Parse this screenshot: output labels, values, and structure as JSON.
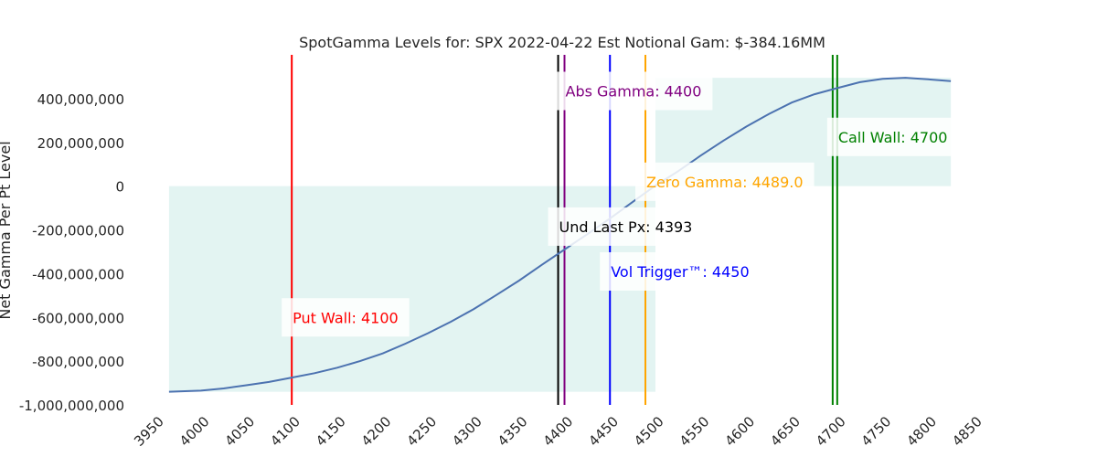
{
  "chart_data": {
    "type": "line",
    "title": "SpotGamma Levels for: SPX  2022-04-22 Est Notional Gam: $-384.16MM",
    "xlabel": "",
    "ylabel": "Net Gamma Per Pt Level",
    "xlim": [
      3950,
      4850
    ],
    "ylim": [
      -1000000000,
      600000000
    ],
    "x_ticks": [
      3950,
      4000,
      4050,
      4100,
      4150,
      4200,
      4250,
      4300,
      4350,
      4400,
      4450,
      4500,
      4550,
      4600,
      4650,
      4700,
      4750,
      4800,
      4850
    ],
    "y_ticks": [
      -1000000000,
      -800000000,
      -600000000,
      -400000000,
      -200000000,
      0,
      200000000,
      400000000
    ],
    "y_tick_labels": [
      "-1,000,000,000",
      "-800,000,000",
      "-600,000,000",
      "-400,000,000",
      "-200,000,000",
      "0",
      "200,000,000",
      "400,000,000"
    ],
    "grid": false,
    "series": [
      {
        "color": "#4c72b0",
        "x": [
          3965,
          4000,
          4025,
          4050,
          4075,
          4100,
          4125,
          4150,
          4175,
          4200,
          4225,
          4250,
          4275,
          4300,
          4325,
          4350,
          4375,
          4400,
          4425,
          4450,
          4475,
          4500,
          4525,
          4550,
          4575,
          4600,
          4625,
          4650,
          4675,
          4700,
          4725,
          4750,
          4775,
          4800,
          4825
        ],
        "y": [
          -940000000,
          -935000000,
          -925000000,
          -910000000,
          -895000000,
          -875000000,
          -855000000,
          -830000000,
          -800000000,
          -765000000,
          -720000000,
          -672000000,
          -620000000,
          -562000000,
          -498000000,
          -432000000,
          -360000000,
          -290000000,
          -220000000,
          -148000000,
          -72000000,
          2000000,
          68000000,
          140000000,
          208000000,
          272000000,
          330000000,
          382000000,
          420000000,
          448000000,
          475000000,
          490000000,
          495000000,
          488000000,
          480000000
        ]
      }
    ],
    "fill_color": "#e3f4f2",
    "levels": [
      {
        "x": 4100,
        "color": "#ff0000",
        "label": "Put Wall: 4100",
        "label_x": 4100,
        "label_y": -600000000
      },
      {
        "x": 4393,
        "color": "#000000",
        "label": "Und Last Px: 4393",
        "label_x": 4393,
        "label_y": -185000000
      },
      {
        "x": 4400,
        "color": "#800080",
        "label": "Abs Gamma: 4400",
        "label_x": 4400,
        "label_y": 435000000
      },
      {
        "x": 4450,
        "color": "#0000ff",
        "label": "Vol Trigger™: 4450",
        "label_x": 4450,
        "label_y": -390000000
      },
      {
        "x": 4489,
        "color": "#ffa500",
        "label": "Zero Gamma: 4489.0",
        "label_x": 4489,
        "label_y": 20000000
      },
      {
        "x": 4695,
        "color": "#008000",
        "label": "",
        "label_x": 4695,
        "label_y": 0
      },
      {
        "x": 4700,
        "color": "#008000",
        "label": "Call Wall: 4700",
        "label_x": 4700,
        "label_y": 225000000
      }
    ]
  }
}
